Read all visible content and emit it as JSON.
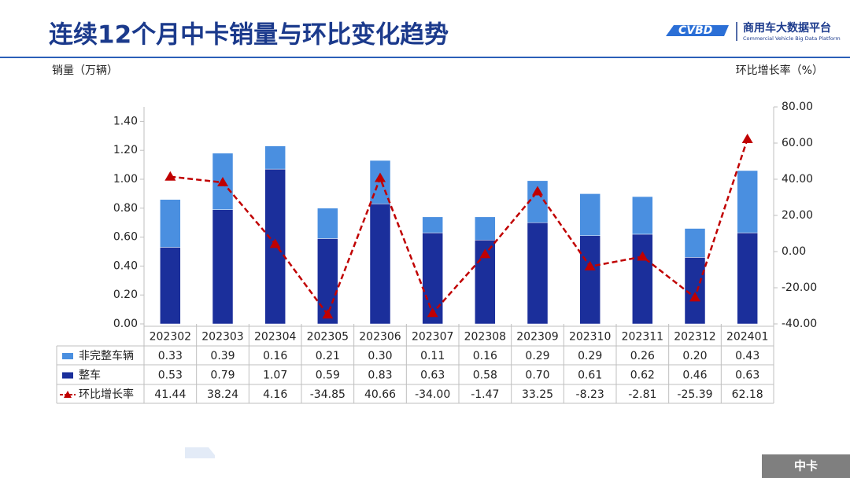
{
  "logo": {
    "name": "商用车大数据平台",
    "subtitle": "Commercial Vehicle Big Data Platform"
  },
  "footer_tag": "中卡",
  "chart_data": {
    "type": "bar",
    "title": "连续12个月中卡销量与环比变化趋势",
    "y_label": "销量（万辆）",
    "y2_label": "环比增长率（%）",
    "categories": [
      "202302",
      "202303",
      "202304",
      "202305",
      "202306",
      "202307",
      "202308",
      "202309",
      "202310",
      "202311",
      "202312",
      "202401"
    ],
    "stacked": true,
    "series": [
      {
        "name": "非完整车辆",
        "color": "#4a8fe0",
        "values": [
          0.33,
          0.39,
          0.16,
          0.21,
          0.3,
          0.11,
          0.16,
          0.29,
          0.29,
          0.26,
          0.2,
          0.43
        ],
        "value_labels": [
          "0.33",
          "0.39",
          "0.16",
          "0.21",
          "0.30",
          "0.11",
          "0.16",
          "0.29",
          "0.29",
          "0.26",
          "0.20",
          "0.43"
        ]
      },
      {
        "name": "整车",
        "color": "#1b2f9b",
        "values": [
          0.53,
          0.79,
          1.07,
          0.59,
          0.83,
          0.63,
          0.58,
          0.7,
          0.61,
          0.62,
          0.46,
          0.63
        ],
        "value_labels": [
          "0.53",
          "0.79",
          "1.07",
          "0.59",
          "0.83",
          "0.63",
          "0.58",
          "0.70",
          "0.61",
          "0.62",
          "0.46",
          "0.63"
        ]
      },
      {
        "name": "环比增长率",
        "type": "line",
        "axis": "y2",
        "color": "#c00000",
        "values": [
          41.44,
          38.24,
          4.16,
          -34.85,
          40.66,
          -34.0,
          -1.47,
          33.25,
          -8.23,
          -2.81,
          -25.39,
          62.18
        ],
        "value_labels": [
          "41.44",
          "38.24",
          "4.16",
          "-34.85",
          "40.66",
          "-34.00",
          "-1.47",
          "33.25",
          "-8.23",
          "-2.81",
          "-25.39",
          "62.18"
        ]
      }
    ],
    "ylim": [
      0,
      1.5
    ],
    "yticks": [
      {
        "value": 0,
        "label": "0.00"
      },
      {
        "value": 0.2,
        "label": "0.20"
      },
      {
        "value": 0.4,
        "label": "0.40"
      },
      {
        "value": 0.6,
        "label": "0.60"
      },
      {
        "value": 0.8,
        "label": "0.80"
      },
      {
        "value": 1.0,
        "label": "1.00"
      },
      {
        "value": 1.2,
        "label": "1.20"
      },
      {
        "value": 1.4,
        "label": "1.40"
      }
    ],
    "y2lim": [
      -40,
      80
    ],
    "y2ticks": [
      {
        "value": -40,
        "label": "-40.00"
      },
      {
        "value": -20,
        "label": "-20.00"
      },
      {
        "value": 0,
        "label": "0.00"
      },
      {
        "value": 20,
        "label": "20.00"
      },
      {
        "value": 40,
        "label": "40.00"
      },
      {
        "value": 60,
        "label": "60.00"
      },
      {
        "value": 80,
        "label": "80.00"
      }
    ]
  }
}
